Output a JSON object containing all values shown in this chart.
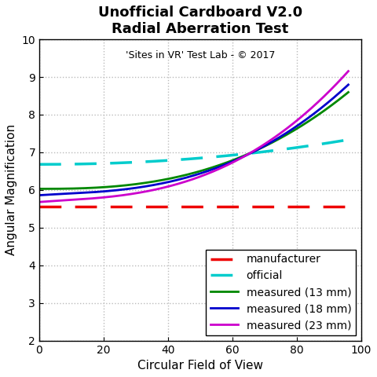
{
  "title": "Unofficial Cardboard V2.0\nRadial Aberration Test",
  "subtitle": "'Sites in VR' Test Lab - © 2017",
  "xlabel": "Circular Field of View",
  "ylabel": "Angular Magnification",
  "xlim": [
    0,
    100
  ],
  "ylim": [
    2,
    10
  ],
  "yticks": [
    2,
    3,
    4,
    5,
    6,
    7,
    8,
    9,
    10
  ],
  "xticks": [
    0,
    20,
    40,
    60,
    80,
    100
  ],
  "background_color": "#ffffff",
  "grid_color": "#bbbbbb",
  "manufacturer_value": 5.56,
  "manufacturer_color": "#ee0000",
  "official_color": "#00cccc",
  "measured_13_color": "#008800",
  "measured_18_color": "#0000cc",
  "measured_23_color": "#cc00cc",
  "legend_labels": [
    "manufacturer",
    "official",
    "measured (13 mm)",
    "measured (18 mm)",
    "measured (23 mm)"
  ],
  "official_a": 6.68,
  "official_b": 4.5e-05,
  "official_exp": 2.1,
  "m13_a": 6.03,
  "m13_b": 1.8e-05,
  "m13_exp": 2.6,
  "m18_a": 5.93,
  "m18_b": 1.6e-05,
  "m18_exp": 2.65,
  "m23_a": 5.78,
  "m23_b": 1.5e-05,
  "m23_exp": 2.7
}
